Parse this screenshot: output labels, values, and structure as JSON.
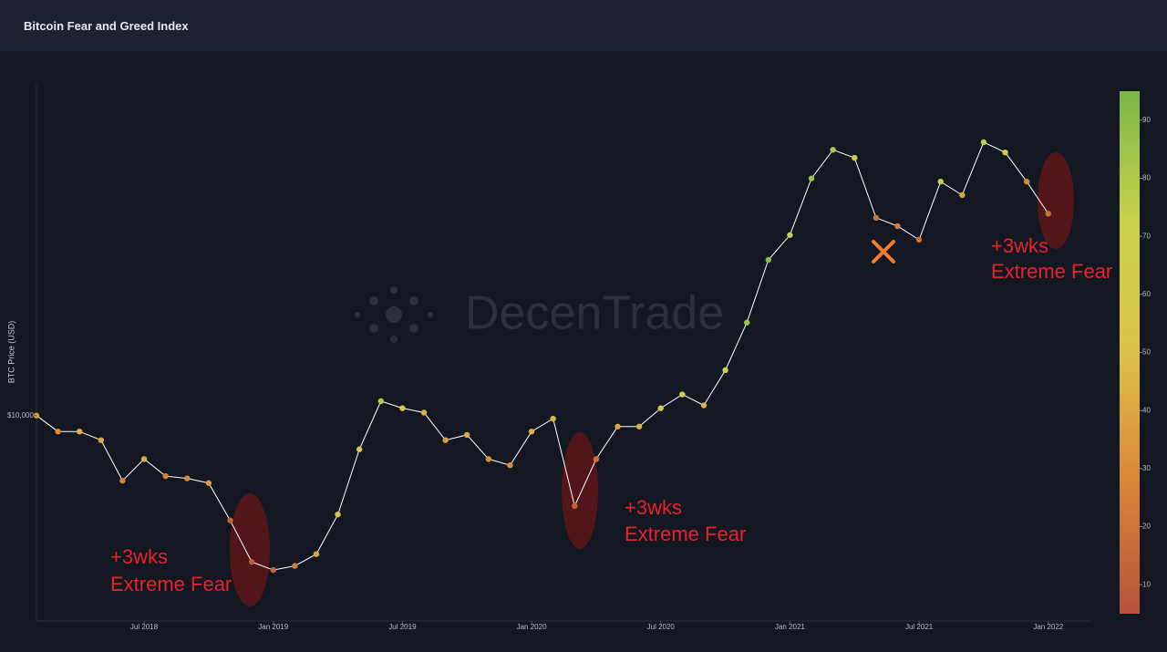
{
  "header": {
    "title": "Bitcoin Fear and Greed Index"
  },
  "chart_data": {
    "type": "line",
    "ylabel": "BTC Price (USD)",
    "watermark": "DecenTrade",
    "log_y": true,
    "x": [
      "2018-02",
      "2018-03",
      "2018-04",
      "2018-05",
      "2018-06",
      "2018-07",
      "2018-08",
      "2018-09",
      "2018-10",
      "2018-11",
      "2018-12",
      "2019-01",
      "2019-02",
      "2019-03",
      "2019-04",
      "2019-05",
      "2019-06",
      "2019-07",
      "2019-08",
      "2019-09",
      "2019-10",
      "2019-11",
      "2019-12",
      "2020-01",
      "2020-02",
      "2020-03",
      "2020-04",
      "2020-05",
      "2020-06",
      "2020-07",
      "2020-08",
      "2020-09",
      "2020-10",
      "2020-11",
      "2020-12",
      "2021-01",
      "2021-02",
      "2021-03",
      "2021-04",
      "2021-05",
      "2021-06",
      "2021-07",
      "2021-08",
      "2021-09",
      "2021-10",
      "2021-11",
      "2021-12",
      "2022-01"
    ],
    "values": [
      10000,
      9000,
      9000,
      8500,
      6500,
      7500,
      6700,
      6600,
      6400,
      5000,
      3800,
      3600,
      3700,
      4000,
      5200,
      8000,
      11000,
      10500,
      10200,
      8500,
      8800,
      7500,
      7200,
      9000,
      9800,
      5500,
      7500,
      9300,
      9300,
      10500,
      11500,
      10700,
      13500,
      18500,
      28000,
      33000,
      48000,
      58000,
      55000,
      37000,
      35000,
      32000,
      47000,
      43000,
      61000,
      57000,
      47000,
      38000
    ],
    "fear_greed": [
      35,
      30,
      45,
      40,
      25,
      40,
      25,
      30,
      35,
      15,
      10,
      15,
      25,
      40,
      55,
      60,
      80,
      55,
      45,
      35,
      40,
      30,
      30,
      45,
      45,
      12,
      20,
      40,
      45,
      60,
      70,
      45,
      65,
      85,
      92,
      75,
      85,
      80,
      70,
      20,
      25,
      20,
      70,
      40,
      75,
      55,
      28,
      18
    ],
    "line_color": "#ffffff",
    "xlim": [
      "2018-02",
      "2022-03"
    ],
    "xticks": [
      {
        "value": "2018-07",
        "label": "Jul 2018"
      },
      {
        "value": "2019-01",
        "label": "Jan 2019"
      },
      {
        "value": "2019-07",
        "label": "Jul 2019"
      },
      {
        "value": "2020-01",
        "label": "Jan 2020"
      },
      {
        "value": "2020-07",
        "label": "Jul 2020"
      },
      {
        "value": "2021-01",
        "label": "Jan 2021"
      },
      {
        "value": "2021-07",
        "label": "Jul 2021"
      },
      {
        "value": "2022-01",
        "label": "Jan 2022"
      }
    ],
    "ylim": [
      2570,
      89700
    ],
    "yticks": [
      {
        "value": 10000,
        "label": "$10,000"
      }
    ],
    "colorbar": {
      "lim": [
        5,
        95
      ],
      "ticks": [
        10,
        20,
        30,
        40,
        50,
        60,
        70,
        80,
        90
      ],
      "colors": [
        "#b5533c",
        "#d9853a",
        "#dcc24a",
        "#c9d24c",
        "#7ab648"
      ]
    },
    "annotations": [
      {
        "lines": [
          "+3wks",
          "Extreme Fear"
        ]
      },
      {
        "lines": [
          "+3wks",
          "Extreme Fear"
        ]
      },
      {
        "lines": [
          "+3wks",
          "Extreme Fear"
        ]
      }
    ]
  }
}
